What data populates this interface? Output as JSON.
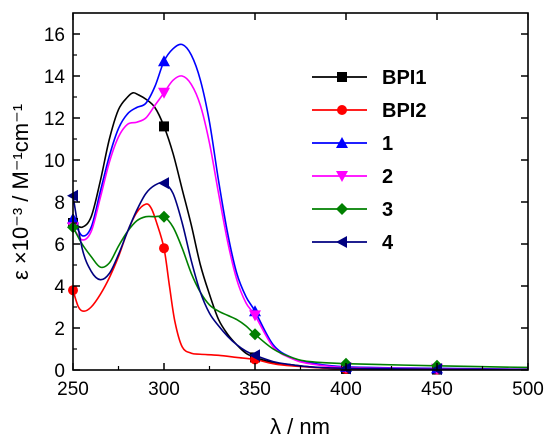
{
  "chart_data": {
    "type": "line",
    "title": "",
    "xlabel": "λ / nm",
    "ylabel": "ε ×10⁻³ / M⁻¹cm⁻¹",
    "xlim": [
      250,
      500
    ],
    "ylim": [
      0,
      17
    ],
    "xticks": [
      250,
      300,
      350,
      400,
      450,
      500
    ],
    "yticks": [
      0,
      2,
      4,
      6,
      8,
      10,
      12,
      14,
      16
    ],
    "grid": false,
    "legend": "top-right",
    "series": [
      {
        "name": "BPI1",
        "color": "#000000",
        "marker": "square",
        "x": [
          250,
          255,
          260,
          265,
          270,
          275,
          280,
          283,
          286,
          290,
          295,
          300,
          305,
          310,
          315,
          320,
          325,
          330,
          335,
          340,
          345,
          350,
          360,
          370,
          380,
          400,
          450,
          500
        ],
        "y": [
          7.0,
          6.8,
          7.3,
          9.0,
          11.0,
          12.4,
          13.0,
          13.2,
          13.1,
          12.9,
          12.5,
          11.6,
          10.3,
          8.6,
          6.9,
          5.0,
          3.6,
          2.4,
          1.7,
          1.2,
          0.8,
          0.6,
          0.35,
          0.25,
          0.15,
          0.05,
          0.02,
          0.01
        ],
        "markers_at": [
          250,
          300,
          350,
          400,
          450
        ]
      },
      {
        "name": "BPI2",
        "color": "#ff0000",
        "marker": "circle",
        "x": [
          250,
          253,
          256,
          260,
          265,
          270,
          275,
          280,
          285,
          290,
          293,
          296,
          300,
          303,
          306,
          310,
          315,
          320,
          330,
          340,
          350,
          360,
          370,
          400,
          450,
          500
        ],
        "y": [
          3.8,
          3.0,
          2.8,
          3.0,
          3.6,
          4.4,
          5.4,
          6.6,
          7.5,
          7.9,
          7.7,
          7.0,
          5.8,
          4.0,
          2.3,
          1.1,
          0.8,
          0.75,
          0.7,
          0.6,
          0.5,
          0.3,
          0.2,
          0.05,
          0.02,
          0.01
        ],
        "markers_at": [
          250,
          300,
          350,
          400,
          450
        ]
      },
      {
        "name": "1",
        "color": "#0000ff",
        "marker": "triangle-up",
        "x": [
          250,
          255,
          260,
          265,
          270,
          275,
          280,
          285,
          290,
          295,
          300,
          305,
          310,
          315,
          320,
          325,
          330,
          335,
          340,
          345,
          350,
          360,
          370,
          380,
          400,
          450,
          500
        ],
        "y": [
          7.2,
          6.4,
          6.8,
          8.5,
          10.2,
          11.5,
          12.2,
          12.5,
          12.7,
          13.5,
          14.7,
          15.3,
          15.5,
          15.0,
          13.8,
          11.8,
          9.0,
          6.5,
          4.6,
          3.5,
          2.8,
          1.2,
          0.6,
          0.35,
          0.15,
          0.08,
          0.04
        ],
        "markers_at": [
          250,
          300,
          350,
          400,
          450
        ]
      },
      {
        "name": "2",
        "color": "#ff00ff",
        "marker": "triangle-down",
        "x": [
          250,
          255,
          260,
          265,
          270,
          275,
          280,
          285,
          290,
          295,
          300,
          305,
          310,
          315,
          320,
          325,
          330,
          335,
          340,
          345,
          350,
          360,
          370,
          380,
          400,
          450,
          500
        ],
        "y": [
          6.8,
          6.2,
          6.6,
          8.2,
          9.9,
          11.1,
          11.7,
          11.8,
          12.0,
          12.6,
          13.2,
          13.8,
          14.0,
          13.6,
          12.6,
          10.8,
          8.4,
          6.1,
          4.3,
          3.2,
          2.6,
          1.1,
          0.55,
          0.3,
          0.12,
          0.06,
          0.03
        ],
        "markers_at": [
          250,
          300,
          350,
          400,
          450
        ]
      },
      {
        "name": "3",
        "color": "#008000",
        "marker": "diamond",
        "x": [
          250,
          255,
          260,
          265,
          270,
          275,
          280,
          285,
          290,
          295,
          300,
          305,
          310,
          315,
          320,
          325,
          330,
          335,
          340,
          345,
          350,
          360,
          370,
          380,
          400,
          450,
          500
        ],
        "y": [
          6.8,
          6.0,
          5.4,
          4.9,
          5.1,
          5.9,
          6.6,
          7.1,
          7.3,
          7.3,
          7.3,
          6.8,
          5.8,
          4.6,
          3.7,
          3.1,
          2.8,
          2.6,
          2.4,
          2.1,
          1.7,
          1.0,
          0.6,
          0.4,
          0.3,
          0.2,
          0.12
        ],
        "markers_at": [
          250,
          300,
          350,
          400,
          450
        ]
      },
      {
        "name": "4",
        "color": "#000080",
        "marker": "triangle-left",
        "x": [
          250,
          255,
          260,
          265,
          270,
          275,
          280,
          285,
          290,
          295,
          300,
          305,
          310,
          315,
          320,
          325,
          330,
          335,
          340,
          345,
          350,
          360,
          370,
          380,
          400,
          450,
          500
        ],
        "y": [
          8.3,
          5.8,
          4.7,
          4.3,
          4.6,
          5.5,
          6.6,
          7.6,
          8.4,
          8.8,
          8.9,
          8.4,
          7.0,
          5.2,
          3.7,
          2.7,
          2.1,
          1.6,
          1.2,
          0.9,
          0.7,
          0.4,
          0.25,
          0.15,
          0.08,
          0.04,
          0.02
        ],
        "markers_at": [
          250,
          300,
          350,
          400,
          450
        ]
      }
    ]
  }
}
